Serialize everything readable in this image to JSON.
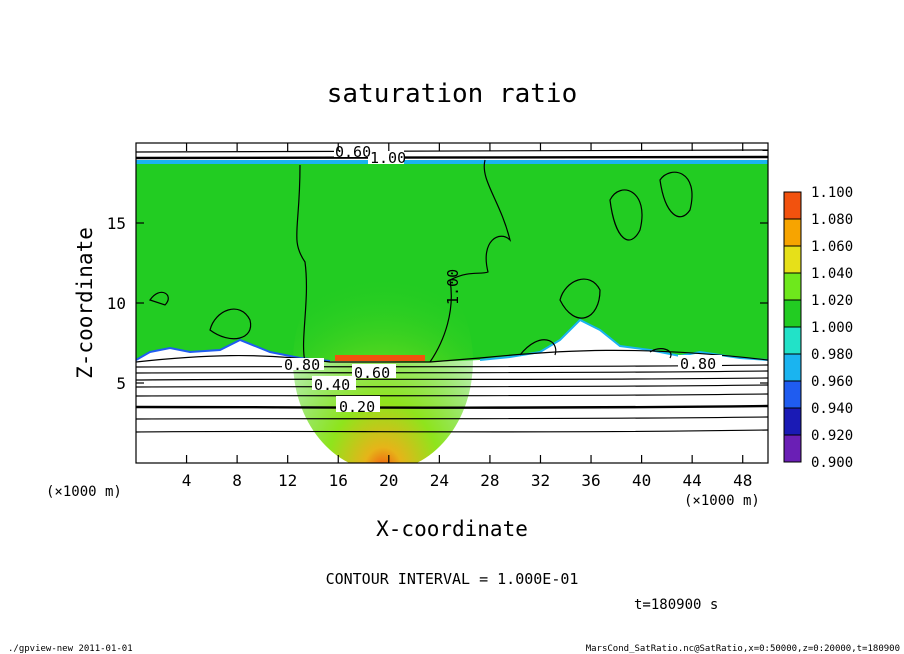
{
  "chart_data": {
    "type": "heatmap",
    "title": "saturation ratio",
    "xlabel": "X-coordinate",
    "ylabel": "Z-coordinate",
    "x_unit": "(×1000 m)",
    "z_unit": "(×1000 m)",
    "xlim": [
      0,
      50
    ],
    "ylim": [
      0,
      20
    ],
    "x_ticks": [
      4,
      8,
      12,
      16,
      20,
      24,
      28,
      32,
      36,
      40,
      44,
      48
    ],
    "y_ticks": [
      5,
      10,
      15
    ],
    "colorbar": {
      "levels": [
        "0.900",
        "0.920",
        "0.940",
        "0.960",
        "0.980",
        "1.000",
        "1.020",
        "1.040",
        "1.060",
        "1.080",
        "1.100"
      ],
      "colors": [
        "#6a1fb5",
        "#1a1ab5",
        "#1f5cf0",
        "#1ab4f0",
        "#22e2c8",
        "#22cc22",
        "#6ee81c",
        "#e6e019",
        "#f7a400",
        "#f2520e",
        "#f07a7a"
      ]
    },
    "contour_labels": [
      "0.20",
      "0.40",
      "0.60",
      "0.80",
      "0.80",
      "1.00",
      "1.00",
      "0.60"
    ],
    "contour_interval": "CONTOUR INTERVAL = 1.000E-01",
    "time_label": "t=180900 s",
    "grid": false
  },
  "footer": {
    "left": "./gpview-new  2011-01-01",
    "right": "MarsCond_SatRatio.nc@SatRatio,x=0:50000,z=0:20000,t=180900"
  }
}
